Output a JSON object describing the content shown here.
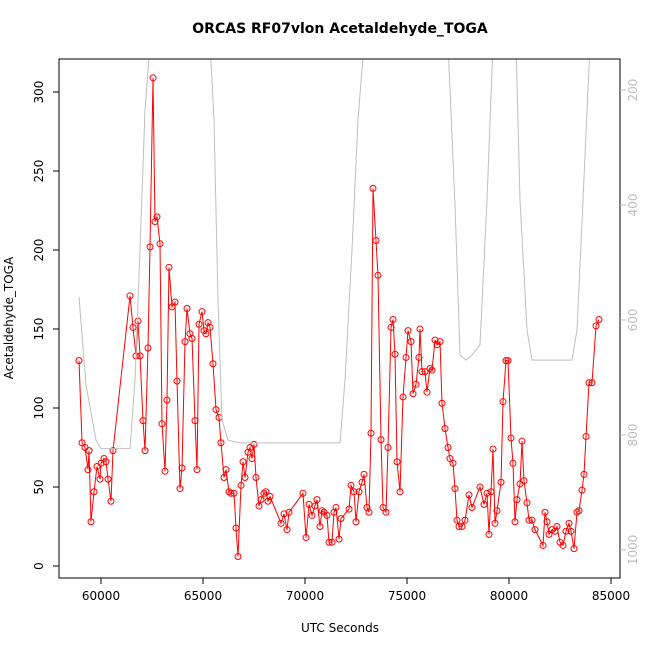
{
  "chart_data": {
    "type": "line",
    "title": "ORCAS RF07vlon Acetaldehyde_TOGA",
    "xlabel": "UTC Seconds",
    "ylabel": "Acetaldehyde_TOGA",
    "xlim": [
      57941,
      85441
    ],
    "ylim": [
      -7.6,
      320.9
    ],
    "y2lim": [
      1049,
      146
    ],
    "xticks": [
      60000,
      65000,
      70000,
      75000,
      80000,
      85000
    ],
    "yticks": [
      0,
      50,
      100,
      150,
      200,
      250,
      300
    ],
    "y2ticks": [
      200,
      400,
      600,
      800,
      1000
    ],
    "series": [
      {
        "color": "#ff0000",
        "marker": "circle",
        "x": [
          58922,
          59070,
          59216,
          59363,
          59412,
          59510,
          59657,
          59804,
          59951,
          60000,
          60147,
          60245,
          60343,
          60490,
          60588,
          61422,
          61569,
          61716,
          61814,
          61912,
          62059,
          62157,
          62304,
          62402,
          62549,
          62647,
          62745,
          62892,
          62990,
          63137,
          63235,
          63333,
          63480,
          63627,
          63725,
          63873,
          63971,
          64118,
          64216,
          64363,
          64461,
          64608,
          64706,
          64804,
          64951,
          65049,
          65147,
          65245,
          65343,
          65490,
          65637,
          65784,
          65882,
          66029,
          66127,
          66274,
          66373,
          66520,
          66618,
          66716,
          66863,
          66961,
          67059,
          67206,
          67304,
          67402,
          67500,
          67598,
          67745,
          67843,
          67990,
          68088,
          68186,
          68284,
          68824,
          68971,
          69118,
          69216,
          69902,
          70049,
          70196,
          70343,
          70490,
          70588,
          70735,
          70833,
          70931,
          71078,
          71176,
          71324,
          71422,
          71520,
          71667,
          71765,
          72157,
          72255,
          72402,
          72500,
          72647,
          72794,
          72892,
          73039,
          73137,
          73235,
          73333,
          73480,
          73578,
          73725,
          73824,
          73971,
          74069,
          74216,
          74314,
          74412,
          74510,
          74657,
          74804,
          74951,
          75049,
          75196,
          75294,
          75441,
          75588,
          75637,
          75735,
          75882,
          75980,
          76127,
          76226,
          76373,
          76471,
          76618,
          76716,
          76863,
          77010,
          77108,
          77255,
          77353,
          77451,
          77549,
          77696,
          77843,
          78039,
          78186,
          78578,
          78775,
          78922,
          79020,
          79118,
          79216,
          79314,
          79412,
          79608,
          79706,
          79853,
          79951,
          80098,
          80196,
          80294,
          80392,
          80539,
          80637,
          80735,
          80882,
          80980,
          81127,
          81275,
          81667,
          81765,
          81863,
          81961,
          82108,
          82255,
          82353,
          82500,
          82647,
          82794,
          82941,
          83039,
          83186,
          83333,
          83431,
          83578,
          83676,
          83775,
          83922,
          84069,
          84265,
          84412
        ],
        "values": [
          130,
          78,
          75,
          61,
          73,
          28,
          47,
          63,
          55,
          65,
          68,
          66,
          55,
          41,
          73,
          171,
          151,
          133,
          155,
          133,
          92,
          73,
          138,
          202,
          309,
          218,
          221,
          204,
          90,
          60,
          105,
          189,
          164,
          167,
          117,
          49,
          62,
          142,
          163,
          147,
          144,
          92,
          61,
          153,
          161,
          149,
          147,
          154,
          151,
          128,
          99,
          94,
          78,
          56,
          61,
          47,
          46,
          46,
          24,
          6,
          51,
          66,
          56,
          72,
          75,
          68,
          77,
          56,
          38,
          42,
          46,
          47,
          41,
          44,
          27,
          33,
          23,
          34,
          46,
          18,
          39,
          32,
          38,
          42,
          25,
          35,
          34,
          32,
          15,
          15,
          34,
          37,
          17,
          30,
          36,
          51,
          47,
          28,
          47,
          53,
          58,
          37,
          34,
          84,
          239,
          206,
          184,
          80,
          37,
          34,
          75,
          151,
          156,
          134,
          66,
          47,
          107,
          132,
          149,
          142,
          109,
          115,
          132,
          150,
          123,
          123,
          110,
          125,
          124,
          143,
          140,
          142,
          103,
          87,
          75,
          68,
          65,
          49,
          29,
          25,
          25,
          29,
          45,
          37,
          50,
          39,
          46,
          20,
          47,
          74,
          27,
          35,
          53,
          104,
          130,
          130,
          81,
          65,
          28,
          42,
          52,
          79,
          54,
          40,
          29,
          29,
          23,
          13,
          34,
          28,
          20,
          23,
          22,
          25,
          15,
          13,
          22,
          27,
          22,
          11,
          34,
          35,
          48,
          58,
          82,
          116,
          116,
          152,
          156
        ]
      },
      {
        "color": "#bebebe",
        "axis": "y2",
        "x": [
          58922,
          59265,
          59755,
          60000,
          61422,
          61667,
          61912,
          62157,
          62402,
          65343,
          65539,
          65735,
          65931,
          66225,
          66814,
          71716,
          71961,
          72304,
          72598,
          72892,
          77010,
          77353,
          77598,
          77892,
          78186,
          78578,
          78922,
          79216,
          80343,
          80539,
          80882,
          81127,
          83088,
          83333,
          83628,
          83971
        ],
        "values": [
          560,
          713,
          809,
          824,
          824,
          704,
          478,
          235,
          120,
          120,
          252,
          565,
          774,
          809,
          814,
          814,
          704,
          478,
          252,
          120,
          120,
          400,
          661,
          670,
          661,
          643,
          391,
          120,
          120,
          391,
          617,
          670,
          670,
          617,
          391,
          120
        ]
      }
    ]
  }
}
